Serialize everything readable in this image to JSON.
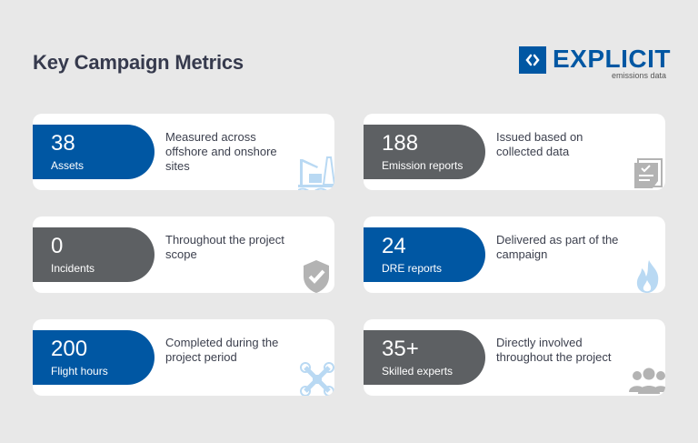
{
  "header": {
    "title": "Key Campaign Metrics"
  },
  "logo": {
    "name": "EXPLICIT",
    "tagline": "emissions data",
    "color": "#0057a3"
  },
  "colors": {
    "blue": "#0057a3",
    "gray": "#5d6063",
    "icon_blue": "#b9d9f3",
    "icon_gray": "#b3b3b3"
  },
  "metrics": [
    {
      "value": "38",
      "label": "Assets",
      "description": "Measured across offshore and onshore sites",
      "style": "blue",
      "icon": "oil-rig-icon"
    },
    {
      "value": "188",
      "label": "Emission reports",
      "description": "Issued based on collected data",
      "style": "gray",
      "icon": "document-check-icon"
    },
    {
      "value": "0",
      "label": "Incidents",
      "description": "Throughout the project scope",
      "style": "gray",
      "icon": "shield-check-icon"
    },
    {
      "value": "24",
      "label": "DRE reports",
      "description": "Delivered as part of the campaign",
      "style": "blue",
      "icon": "flame-icon"
    },
    {
      "value": "200",
      "label": "Flight hours",
      "description": "Completed during the project period",
      "style": "blue",
      "icon": "drone-icon"
    },
    {
      "value": "35+",
      "label": "Skilled experts",
      "description": "Directly involved throughout the project",
      "style": "gray",
      "icon": "people-icon"
    }
  ]
}
